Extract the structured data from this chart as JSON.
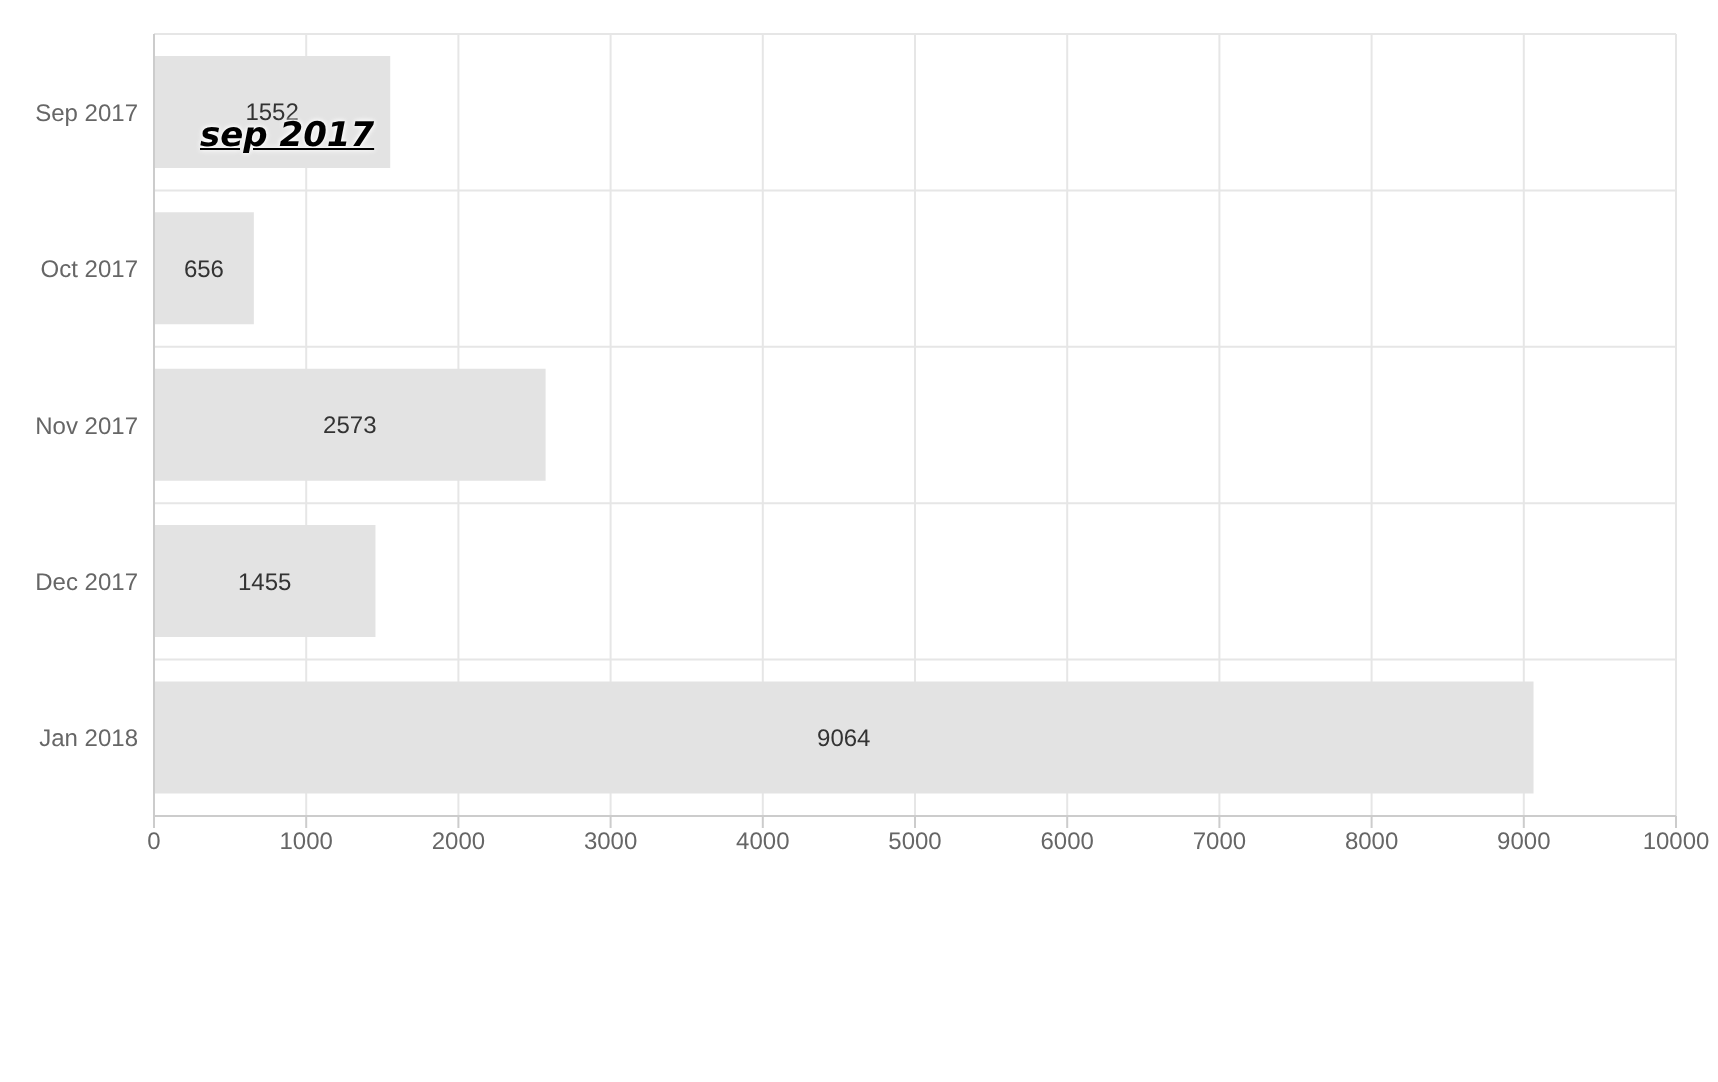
{
  "chart_data": {
    "type": "bar",
    "orientation": "horizontal",
    "categories": [
      "Sep 2017",
      "Oct 2017",
      "Nov 2017",
      "Dec 2017",
      "Jan 2018"
    ],
    "values": [
      1552,
      656,
      2573,
      1455,
      9064
    ],
    "color": "#e3e3e3",
    "data_labels": true,
    "xlim": [
      0,
      10000
    ],
    "xticks": [
      0,
      1000,
      2000,
      3000,
      4000,
      5000,
      6000,
      7000,
      8000,
      9000,
      10000
    ],
    "grid": true,
    "legend": false,
    "annotations": [
      "sep 2017"
    ]
  }
}
